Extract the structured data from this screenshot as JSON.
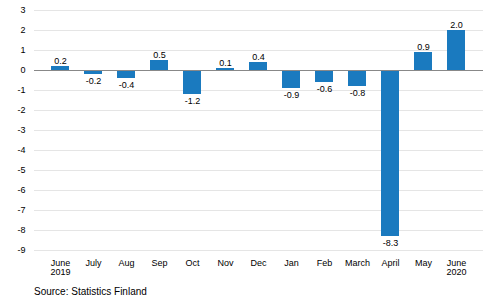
{
  "chart_data": {
    "type": "bar",
    "categories": [
      "June\n2019",
      "July",
      "Aug",
      "Sep",
      "Oct",
      "Nov",
      "Dec",
      "Jan",
      "Feb",
      "March",
      "April",
      "May",
      "June\n2020"
    ],
    "values": [
      0.2,
      -0.2,
      -0.4,
      0.5,
      -1.2,
      0.1,
      0.4,
      -0.9,
      -0.6,
      -0.8,
      -8.3,
      0.9,
      2.0
    ],
    "value_labels": [
      "0.2",
      "-0.2",
      "-0.4",
      "0.5",
      "-1.2",
      "0.1",
      "0.4",
      "-0.9",
      "-0.6",
      "-0.8",
      "-8.3",
      "0.9",
      "2.0"
    ],
    "data_labels": true,
    "color": "#1a7abf",
    "ylim": [
      -9,
      3
    ],
    "yticks": [
      -9,
      -8,
      -7,
      -6,
      -5,
      -4,
      -3,
      -2,
      -1,
      0,
      1,
      2,
      3
    ],
    "grid": true,
    "source": "Source: Statistics Finland"
  }
}
